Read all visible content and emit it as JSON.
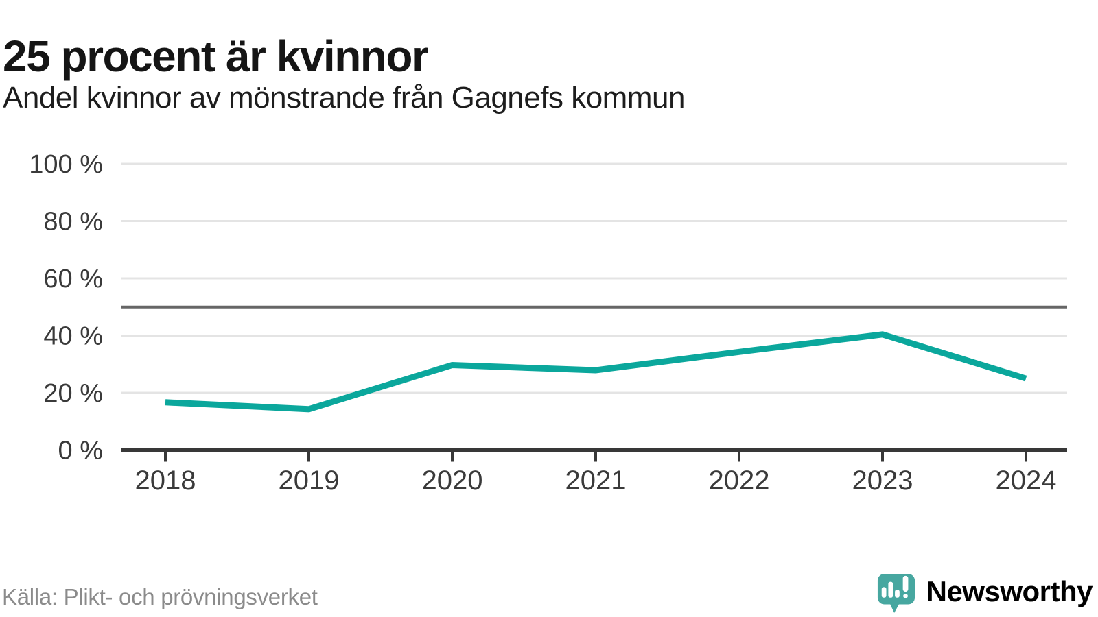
{
  "header": {
    "title": "25 procent är kvinnor",
    "subtitle": "Andel kvinnor av mönstrande från Gagnefs kommun"
  },
  "chart_data": {
    "type": "line",
    "title": "25 procent är kvinnor",
    "subtitle": "Andel kvinnor av mönstrande från Gagnefs kommun",
    "x": [
      "2018",
      "2019",
      "2020",
      "2021",
      "2022",
      "2023",
      "2024"
    ],
    "series": [
      {
        "name": "Andel kvinnor av mönstrande",
        "color": "#0ba79c",
        "values": [
          16.7,
          14.3,
          29.7,
          27.9,
          34.3,
          40.4,
          25.0
        ]
      }
    ],
    "xlabel": "",
    "ylabel": "",
    "ylim": [
      0,
      100
    ],
    "yticks": [
      0,
      20,
      40,
      60,
      80,
      100
    ],
    "ytick_labels": [
      "0 %",
      "20 %",
      "40 %",
      "60 %",
      "80 %",
      "100 %"
    ],
    "reference_line": 50,
    "grid": true,
    "legend": false
  },
  "footer": {
    "source": "Källa: Plikt- och prövningsverket",
    "brand_name": "Newsworthy"
  },
  "colors": {
    "line": "#0ba79c",
    "reference": "#666666",
    "axis": "#383838",
    "grid": "#e4e4e4",
    "label_text": "#3a3a3a",
    "brand": "#47a7a0"
  }
}
